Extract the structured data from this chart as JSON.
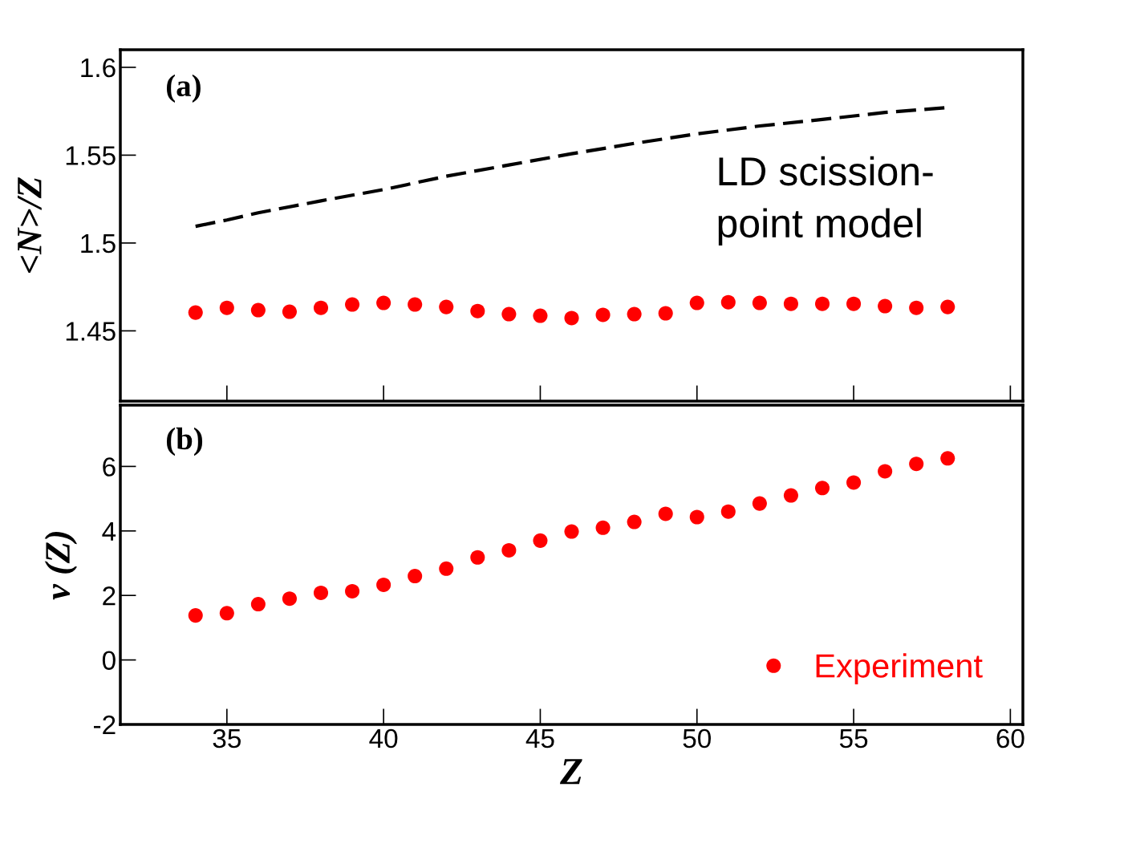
{
  "chart_data": [
    {
      "type": "scatter",
      "ylabel": "<N>/Z",
      "xlim": [
        31.6,
        60.4
      ],
      "xticks": [
        35,
        40,
        45,
        50,
        55,
        60
      ],
      "ylim": [
        1.41,
        1.61
      ],
      "yticks": [
        1.45,
        1.5,
        1.55,
        1.6
      ],
      "tick_labels": "y",
      "marker": "circle",
      "grid": false,
      "legend": false,
      "annotations": [
        "(a)",
        "LD scission-\npoint model"
      ],
      "series": [
        {
          "color": "#ff0000",
          "x": [
            34,
            35,
            36,
            37,
            38,
            39,
            40,
            41,
            42,
            43,
            44,
            45,
            46,
            47,
            48,
            49,
            50,
            51,
            52,
            53,
            54,
            55,
            56,
            57,
            58
          ],
          "values": [
            1.4604,
            1.4631,
            1.4618,
            1.4609,
            1.4631,
            1.465,
            1.4659,
            1.465,
            1.4636,
            1.4613,
            1.4595,
            1.4586,
            1.4573,
            1.4591,
            1.4595,
            1.46,
            1.4659,
            1.4663,
            1.4659,
            1.4654,
            1.4654,
            1.4654,
            1.4641,
            1.4631,
            1.4636
          ]
        },
        {
          "type": "line",
          "color": "#000000",
          "line_style": "dashed",
          "marker": "none",
          "x": [
            34,
            35,
            36,
            38,
            40,
            42,
            44,
            46,
            48,
            50,
            52,
            54,
            56,
            58
          ],
          "values": [
            1.5095,
            1.5131,
            1.5172,
            1.524,
            1.5304,
            1.538,
            1.5444,
            1.5508,
            1.5567,
            1.5621,
            1.5666,
            1.5703,
            1.5743,
            1.5771
          ]
        }
      ]
    },
    {
      "type": "scatter",
      "xlabel": "Z",
      "ylabel": "ν (Z)",
      "xlim": [
        31.6,
        60.4
      ],
      "xticks": [
        35,
        40,
        45,
        50,
        55,
        60
      ],
      "ylim": [
        -2,
        7.9
      ],
      "yticks": [
        -2,
        0,
        2,
        4,
        6
      ],
      "marker": "circle",
      "grid": false,
      "legend": "bottom right",
      "annotations": [
        "(b)"
      ],
      "series": [
        {
          "name": "Experiment",
          "color": "#ff0000",
          "x": [
            34,
            35,
            36,
            37,
            38,
            39,
            40,
            41,
            42,
            43,
            44,
            45,
            46,
            47,
            48,
            49,
            50,
            51,
            52,
            53,
            54,
            55,
            56,
            57,
            58
          ],
          "values": [
            1.38,
            1.45,
            1.73,
            1.9,
            2.08,
            2.13,
            2.33,
            2.6,
            2.83,
            3.18,
            3.4,
            3.7,
            3.98,
            4.1,
            4.28,
            4.53,
            4.43,
            4.6,
            4.85,
            5.1,
            5.33,
            5.5,
            5.85,
            6.08,
            6.25
          ]
        }
      ]
    }
  ]
}
